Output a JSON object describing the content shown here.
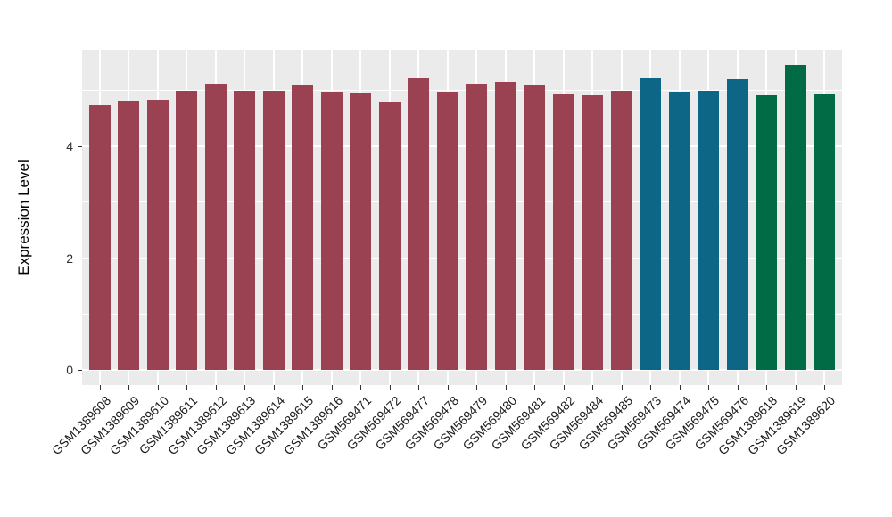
{
  "chart_data": {
    "type": "bar",
    "title": "",
    "xlabel": "",
    "ylabel": "Expression Level",
    "legend_position": "none",
    "grid": true,
    "panel_bg": "#EBEBEB",
    "grid_color": "#FFFFFF",
    "axis_tick_color": "#333333",
    "palette": {
      "dark_red": "#9A4152",
      "teal_blue": "#0E6687",
      "dark_green": "#006B45"
    },
    "categories": [
      "GSM1389608",
      "GSM1389609",
      "GSM1389610",
      "GSM1389611",
      "GSM1389612",
      "GSM1389613",
      "GSM1389614",
      "GSM1389615",
      "GSM1389616",
      "GSM569471",
      "GSM569472",
      "GSM569477",
      "GSM569478",
      "GSM569479",
      "GSM569480",
      "GSM569481",
      "GSM569482",
      "GSM569484",
      "GSM569485",
      "GSM569473",
      "GSM569474",
      "GSM569475",
      "GSM569476",
      "GSM1389618",
      "GSM1389619",
      "GSM1389620"
    ],
    "values": [
      4.73,
      4.81,
      4.83,
      4.99,
      5.11,
      4.98,
      4.98,
      5.1,
      4.97,
      4.96,
      4.8,
      5.21,
      4.97,
      5.12,
      5.15,
      5.1,
      4.93,
      4.9,
      4.98,
      5.23,
      4.97,
      4.99,
      5.19,
      4.91,
      5.45,
      4.93
    ],
    "bar_colors": [
      "#9A4152",
      "#9A4152",
      "#9A4152",
      "#9A4152",
      "#9A4152",
      "#9A4152",
      "#9A4152",
      "#9A4152",
      "#9A4152",
      "#9A4152",
      "#9A4152",
      "#9A4152",
      "#9A4152",
      "#9A4152",
      "#9A4152",
      "#9A4152",
      "#9A4152",
      "#9A4152",
      "#9A4152",
      "#0E6687",
      "#0E6687",
      "#0E6687",
      "#0E6687",
      "#006B45",
      "#006B45",
      "#006B45"
    ],
    "yticks": [
      0,
      2,
      4
    ],
    "yticks_minor": [
      1,
      3,
      5
    ],
    "ylim": [
      -0.27,
      5.72
    ]
  }
}
